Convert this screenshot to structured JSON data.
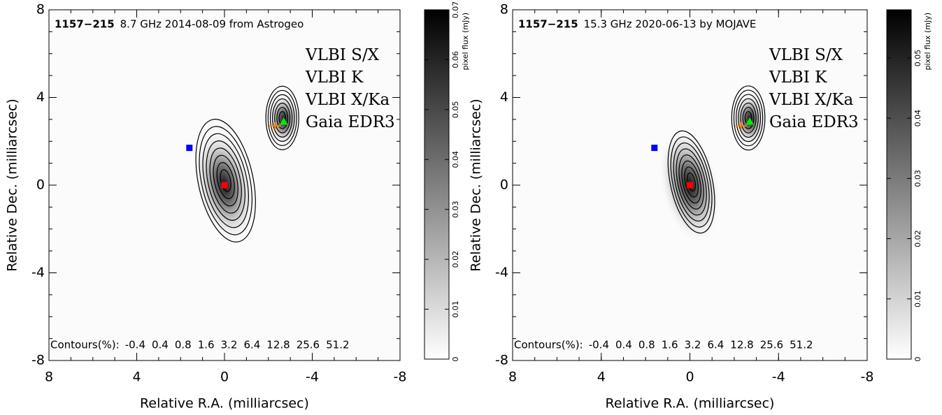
{
  "chart_data": [
    {
      "type": "contour",
      "title": "1157−215",
      "subtitle": "8.7 GHz 2014-08-09 from Astrogeo",
      "x_label": "Relative R.A. (milliarcsec)",
      "y_label": "Relative Dec. (milliarcsec)",
      "xlim": [
        8,
        -8
      ],
      "ylim": [
        -8,
        8
      ],
      "xticks": [
        8,
        4,
        0,
        -4,
        -8
      ],
      "yticks": [
        -8,
        -4,
        0,
        4,
        8
      ],
      "contours_label": "Contours(%):",
      "contour_levels": [
        -0.4,
        0.4,
        0.8,
        1.6,
        3.2,
        6.4,
        12.8,
        25.6,
        51.2
      ],
      "series": [
        {
          "name": "VLBI S/X",
          "color": "#ff0000",
          "marker": "square",
          "x": [
            0
          ],
          "y": [
            0
          ]
        },
        {
          "name": "VLBI K",
          "color": "#0000ff",
          "marker": "square",
          "x": [
            1.6
          ],
          "y": [
            1.7
          ]
        },
        {
          "name": "VLBI X/Ka",
          "color": "#ff8000",
          "marker": "plus",
          "x": [
            -2.3
          ],
          "y": [
            2.7
          ]
        },
        {
          "name": "Gaia EDR3",
          "color": "#00ee00",
          "marker": "triangle",
          "x": [
            -2.7
          ],
          "y": [
            2.9
          ]
        }
      ],
      "colorbar": {
        "label": "pixel flux (mJy)",
        "lim": [
          0,
          0.07
        ],
        "ticks": [
          0,
          0.01,
          0.02,
          0.03,
          0.04,
          0.05,
          0.06,
          0.07
        ]
      }
    },
    {
      "type": "contour",
      "title": "1157−215",
      "subtitle": "15.3 GHz 2020-06-13 by MOJAVE",
      "x_label": "Relative R.A. (milliarcsec)",
      "y_label": "Relative Dec. (milliarcsec)",
      "xlim": [
        8,
        -8
      ],
      "ylim": [
        -8,
        8
      ],
      "xticks": [
        8,
        4,
        0,
        -4,
        -8
      ],
      "yticks": [
        -8,
        -4,
        0,
        4,
        8
      ],
      "contours_label": "Contours(%):",
      "contour_levels": [
        -0.4,
        0.4,
        0.8,
        1.6,
        3.2,
        6.4,
        12.8,
        25.6,
        51.2
      ],
      "series": [
        {
          "name": "VLBI S/X",
          "color": "#ff0000",
          "marker": "square",
          "x": [
            0
          ],
          "y": [
            0
          ]
        },
        {
          "name": "VLBI K",
          "color": "#0000ff",
          "marker": "square",
          "x": [
            1.6
          ],
          "y": [
            1.7
          ]
        },
        {
          "name": "VLBI X/Ka",
          "color": "#ff8000",
          "marker": "plus",
          "x": [
            -2.3
          ],
          "y": [
            2.7
          ]
        },
        {
          "name": "Gaia EDR3",
          "color": "#00ee00",
          "marker": "triangle",
          "x": [
            -2.7
          ],
          "y": [
            2.9
          ]
        }
      ],
      "colorbar": {
        "label": "pixel flux (mJy)",
        "lim": [
          0,
          0.058
        ],
        "ticks": [
          0,
          0.01,
          0.02,
          0.03,
          0.04,
          0.05
        ]
      }
    }
  ]
}
